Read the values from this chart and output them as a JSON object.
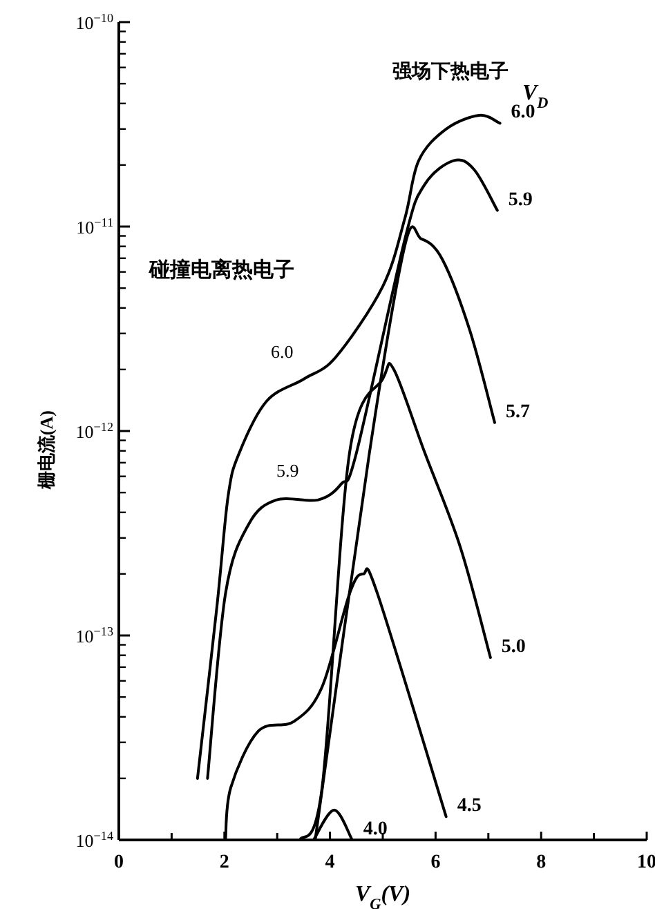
{
  "chart_data": {
    "type": "line",
    "xlabel": "V$_{G}$(V)",
    "ylabel": "栅电流(A)",
    "log": "y",
    "grid": false,
    "marker": "none",
    "line_style": "solid",
    "xlim": [
      0,
      10
    ],
    "ylim": [
      1e-14,
      1e-10
    ],
    "xticks": [
      0,
      {
        "value": 1,
        "label": null
      },
      2,
      {
        "value": 3,
        "label": null
      },
      4,
      {
        "value": 5,
        "label": null
      },
      6,
      {
        "value": 7,
        "label": null
      },
      8,
      {
        "value": 9,
        "label": null
      },
      10
    ],
    "yticks": [
      {
        "value": 1e-14,
        "label": "10$^{−14}$"
      },
      {
        "value": 1e-13,
        "label": "10$^{−13}$"
      },
      {
        "value": 1e-12,
        "label": "10$^{−12}$"
      },
      {
        "value": 1e-11,
        "label": "10$^{−11}$"
      },
      {
        "value": 1e-10,
        "label": "10$^{−10}$"
      }
    ],
    "series": [
      {
        "name": "6.0",
        "color": "#000000",
        "x": [
          1.49,
          1.86,
          2.07,
          2.28,
          2.8,
          3.51,
          4.11,
          5.0,
          5.42,
          5.68,
          6.2,
          6.83,
          7.22
        ],
        "values": [
          2e-14,
          1.4e-13,
          4.8e-13,
          7.8e-13,
          1.4e-12,
          1.8e-12,
          2.3e-12,
          5.1e-12,
          1.1e-11,
          2.1e-11,
          3e-11,
          3.5e-11,
          3.2e-11
        ]
      },
      {
        "name": "5.9",
        "color": "#000000",
        "x": [
          1.68,
          2.02,
          2.46,
          2.98,
          3.77,
          4.21,
          4.5,
          5.42,
          5.79,
          6.34,
          6.73,
          7.17
        ],
        "values": [
          2e-14,
          1.6e-13,
          3.5e-13,
          4.6e-13,
          4.6e-13,
          5.5e-13,
          7.8e-13,
          8.7e-12,
          1.6e-11,
          2.1e-11,
          1.9e-11,
          1.2e-11
        ]
      },
      {
        "name": "5.7",
        "color": "#000000",
        "x": [
          3.72,
          4.74,
          5.42,
          5.73,
          6.13,
          6.65,
          7.12
        ],
        "values": [
          1e-14,
          7.6e-13,
          8.1e-12,
          8.7e-12,
          6.9e-12,
          3.1e-12,
          1.1e-12
        ]
      },
      {
        "name": "5.0",
        "color": "#000000",
        "x": [
          3.43,
          3.85,
          4.37,
          5.0,
          5.21,
          5.79,
          6.47,
          7.04
        ],
        "values": [
          1e-14,
          1.8e-14,
          7.8e-13,
          1.8e-12,
          2e-12,
          7.9e-13,
          2.7e-13,
          7.8e-14
        ]
      },
      {
        "name": "4.5",
        "color": "#000000",
        "x": [
          2.02,
          2.12,
          2.64,
          3.32,
          3.85,
          4.37,
          4.63,
          4.9,
          6.2
        ],
        "values": [
          1e-14,
          1.8e-14,
          3.4e-14,
          3.8e-14,
          5.6e-14,
          1.6e-13,
          2e-13,
          1.6e-13,
          1.3e-14
        ]
      },
      {
        "name": "4.0",
        "color": "#000000",
        "x": [
          3.69,
          4.08,
          4.42
        ],
        "values": [
          1e-14,
          1.4e-14,
          1e-14
        ]
      }
    ],
    "annotations": [
      "强场下热电子",
      "V$_{D}$",
      "碰撞电离热电子",
      "6.0",
      "5.9"
    ]
  }
}
